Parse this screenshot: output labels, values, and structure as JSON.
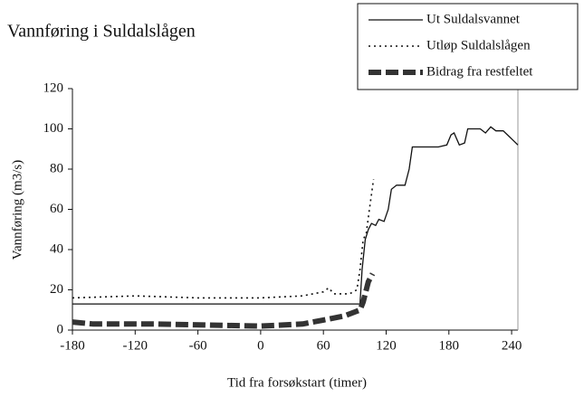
{
  "chart_data": {
    "type": "line",
    "title": "Vannføring i Suldalslågen",
    "xlabel": "Tid fra forsøkstart (timer)",
    "ylabel": "Vannføring (m3/s)",
    "xlim": [
      -180,
      246
    ],
    "ylim": [
      0,
      120
    ],
    "xticks": [
      -180,
      -120,
      -60,
      0,
      60,
      120,
      180,
      240
    ],
    "yticks": [
      0,
      20,
      40,
      60,
      80,
      100,
      120
    ],
    "legend": "upper right",
    "series": [
      {
        "name": "Ut Suldalsvannet",
        "color": "#111111",
        "style": "solid",
        "x": [
          -180,
          -100,
          0,
          60,
          95,
          97,
          100,
          103,
          106,
          110,
          113,
          118,
          122,
          125,
          130,
          138,
          142,
          145,
          170,
          178,
          182,
          185,
          190,
          195,
          198,
          210,
          215,
          220,
          225,
          232,
          238,
          242,
          246
        ],
        "values": [
          13,
          13,
          13,
          13,
          13,
          30,
          45,
          50,
          53,
          52,
          55,
          54,
          60,
          70,
          72,
          72,
          80,
          91,
          91,
          92,
          97,
          98,
          92,
          93,
          100,
          100,
          98,
          101,
          99,
          99,
          96,
          94,
          92
        ]
      },
      {
        "name": "Utløp Suldalslågen",
        "color": "#111111",
        "style": "dotted",
        "x": [
          -180,
          -120,
          -60,
          0,
          40,
          60,
          65,
          70,
          85,
          92,
          95,
          98,
          101,
          104,
          108
        ],
        "values": [
          16,
          17,
          16,
          16,
          17,
          19,
          21,
          18,
          18,
          20,
          30,
          45,
          48,
          60,
          75
        ]
      },
      {
        "name": "Bidrag fra restfeltet",
        "color": "#333333",
        "style": "dashed",
        "x": [
          -180,
          -160,
          -100,
          0,
          40,
          60,
          80,
          90,
          95,
          98,
          100,
          103,
          107
        ],
        "values": [
          4,
          3,
          3,
          2,
          3,
          5,
          7,
          9,
          10,
          14,
          18,
          24,
          28
        ]
      }
    ]
  }
}
